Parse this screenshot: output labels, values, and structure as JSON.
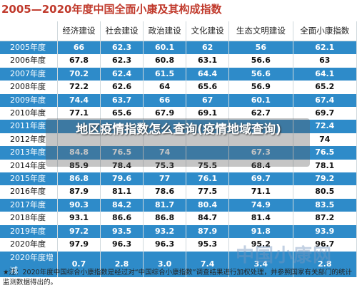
{
  "title": "2005—2020年度中国全面小康及其构成指数",
  "headers": [
    "",
    "经济建设",
    "社会建设",
    "政治建设",
    "文化建设",
    "生态文明建设",
    "全面小康指数"
  ],
  "rows": [
    {
      "year": "2005年度",
      "values": [
        "66",
        "62.3",
        "60.1",
        "62",
        "56",
        "62.1"
      ]
    },
    {
      "year": "2006年度",
      "values": [
        "67.8",
        "62.3",
        "60.8",
        "63.1",
        "56.6",
        "63"
      ]
    },
    {
      "year": "2007年度",
      "values": [
        "70.2",
        "62.4",
        "61.5",
        "64.4",
        "56.6",
        "64.1"
      ]
    },
    {
      "year": "2008年度",
      "values": [
        "72.2",
        "62.6",
        "64",
        "65.6",
        "56.9",
        "65.2"
      ]
    },
    {
      "year": "2009年度",
      "values": [
        "74.4",
        "63.7",
        "66",
        "67",
        "60.1",
        "67.4"
      ]
    },
    {
      "year": "2010年度",
      "values": [
        "77.1",
        "65.6",
        "67.9",
        "69.1",
        "62.7",
        "69.7"
      ]
    },
    {
      "year": "2011年度",
      "values": [
        "",
        "",
        "",
        "",
        "",
        "72.4"
      ]
    },
    {
      "year": "2012年度",
      "values": [
        "",
        "",
        "",
        "",
        "",
        "74"
      ]
    },
    {
      "year": "2013年度",
      "values": [
        "84.8",
        "76.5",
        "74",
        "",
        "67.3",
        "76.5"
      ]
    },
    {
      "year": "2014年度",
      "values": [
        "85.9",
        "78.4",
        "75.3",
        "75.5",
        "68.4",
        "78.1"
      ]
    },
    {
      "year": "2015年度",
      "values": [
        "86.8",
        "79.6",
        "77",
        "76.1",
        "69.7",
        "79.2"
      ]
    },
    {
      "year": "2016年度",
      "values": [
        "87.9",
        "81.1",
        "78.6",
        "77.5",
        "71.1",
        "80.5"
      ]
    },
    {
      "year": "2017年度",
      "values": [
        "90.3",
        "84.2",
        "81.7",
        "80.4",
        "74.9",
        "83.5"
      ]
    },
    {
      "year": "2018年度",
      "values": [
        "93.1",
        "86.6",
        "86.8",
        "84.7",
        "81.4",
        "87.2"
      ]
    },
    {
      "year": "2019年度",
      "values": [
        "97.2",
        "93.5",
        "93.2",
        "87.9",
        "91.8",
        "93.9"
      ]
    },
    {
      "year": "2020年度",
      "values": [
        "97.9",
        "96.3",
        "96.3",
        "95.3",
        "95.2",
        "96.7"
      ]
    },
    {
      "year": "2020年度增减",
      "values": [
        "0.7",
        "2.8",
        "3.0",
        "7.4",
        "3.4",
        "2.8"
      ]
    }
  ],
  "note": "★注：2020年度中国综合小康指数是经过对“中国综合小康指数”调查结果进行加权处理，并参照国家有关部门的统计监测数据得出的。",
  "overlay_text": "地区疫情指数怎么查询(疫情地域查询)",
  "watermark": "中国小康网",
  "colors": {
    "row_blue": "#2e8bc9",
    "title_red": "#c0392b"
  }
}
